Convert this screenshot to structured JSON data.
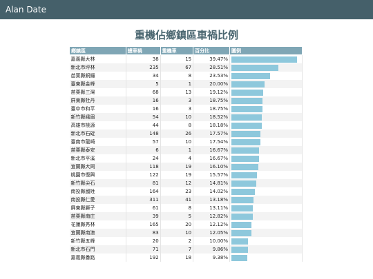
{
  "header": {
    "title": "Alan Date"
  },
  "title": "重機佔鄉鎮區車禍比例",
  "table": {
    "columns": [
      "鄉鎮區",
      "總車禍",
      "重機車",
      "百分比",
      "圖例"
    ],
    "rows": [
      {
        "area": "嘉義縣大林",
        "total": 38,
        "heavy": 15,
        "percent": {
          "value": 39.47,
          "label": "39.47%"
        }
      },
      {
        "area": "新北市坪林",
        "total": 235,
        "heavy": 67,
        "percent": {
          "value": 28.51,
          "label": "28.51%"
        }
      },
      {
        "area": "苗栗縣銅鑼",
        "total": 34,
        "heavy": 8,
        "percent": {
          "value": 23.53,
          "label": "23.53%"
        }
      },
      {
        "area": "臺東縣金峰",
        "total": 5,
        "heavy": 1,
        "percent": {
          "value": 20.0,
          "label": "20.00%"
        }
      },
      {
        "area": "苗栗縣三灣",
        "total": 68,
        "heavy": 13,
        "percent": {
          "value": 19.12,
          "label": "19.12%"
        }
      },
      {
        "area": "屏東縣牡丹",
        "total": 16,
        "heavy": 3,
        "percent": {
          "value": 18.75,
          "label": "18.75%"
        }
      },
      {
        "area": "臺中市和平",
        "total": 16,
        "heavy": 3,
        "percent": {
          "value": 18.75,
          "label": "18.75%"
        }
      },
      {
        "area": "新竹縣峨眉",
        "total": 54,
        "heavy": 10,
        "percent": {
          "value": 18.52,
          "label": "18.52%"
        }
      },
      {
        "area": "高雄市桃源",
        "total": 44,
        "heavy": 8,
        "percent": {
          "value": 18.18,
          "label": "18.18%"
        }
      },
      {
        "area": "新北市石碇",
        "total": 148,
        "heavy": 26,
        "percent": {
          "value": 17.57,
          "label": "17.57%"
        }
      },
      {
        "area": "臺南市龍崎",
        "total": 57,
        "heavy": 10,
        "percent": {
          "value": 17.54,
          "label": "17.54%"
        }
      },
      {
        "area": "苗栗縣泰安",
        "total": 6,
        "heavy": 1,
        "percent": {
          "value": 16.67,
          "label": "16.67%"
        }
      },
      {
        "area": "新北市平溪",
        "total": 24,
        "heavy": 4,
        "percent": {
          "value": 16.67,
          "label": "16.67%"
        }
      },
      {
        "area": "宜蘭縣大同",
        "total": 118,
        "heavy": 19,
        "percent": {
          "value": 16.1,
          "label": "16.10%"
        }
      },
      {
        "area": "桃園市復興",
        "total": 122,
        "heavy": 19,
        "percent": {
          "value": 15.57,
          "label": "15.57%"
        }
      },
      {
        "area": "新竹縣尖石",
        "total": 81,
        "heavy": 12,
        "percent": {
          "value": 14.81,
          "label": "14.81%"
        }
      },
      {
        "area": "南投縣國姓",
        "total": 164,
        "heavy": 23,
        "percent": {
          "value": 14.02,
          "label": "14.02%"
        }
      },
      {
        "area": "南投縣仁愛",
        "total": 311,
        "heavy": 41,
        "percent": {
          "value": 13.18,
          "label": "13.18%"
        }
      },
      {
        "area": "屏東縣獅子",
        "total": 61,
        "heavy": 8,
        "percent": {
          "value": 13.11,
          "label": "13.11%"
        }
      },
      {
        "area": "苗栗縣南庄",
        "total": 39,
        "heavy": 5,
        "percent": {
          "value": 12.82,
          "label": "12.82%"
        }
      },
      {
        "area": "花蓮縣秀林",
        "total": 165,
        "heavy": 20,
        "percent": {
          "value": 12.12,
          "label": "12.12%"
        }
      },
      {
        "area": "宜蘭縣南澳",
        "total": 83,
        "heavy": 10,
        "percent": {
          "value": 12.05,
          "label": "12.05%"
        }
      },
      {
        "area": "新竹縣五峰",
        "total": 20,
        "heavy": 2,
        "percent": {
          "value": 10.0,
          "label": "10.00%"
        }
      },
      {
        "area": "新北市石門",
        "total": 71,
        "heavy": 7,
        "percent": {
          "value": 9.86,
          "label": "9.86%"
        }
      },
      {
        "area": "嘉義縣番路",
        "total": 192,
        "heavy": 18,
        "percent": {
          "value": 9.38,
          "label": "9.38%"
        }
      }
    ]
  }
}
